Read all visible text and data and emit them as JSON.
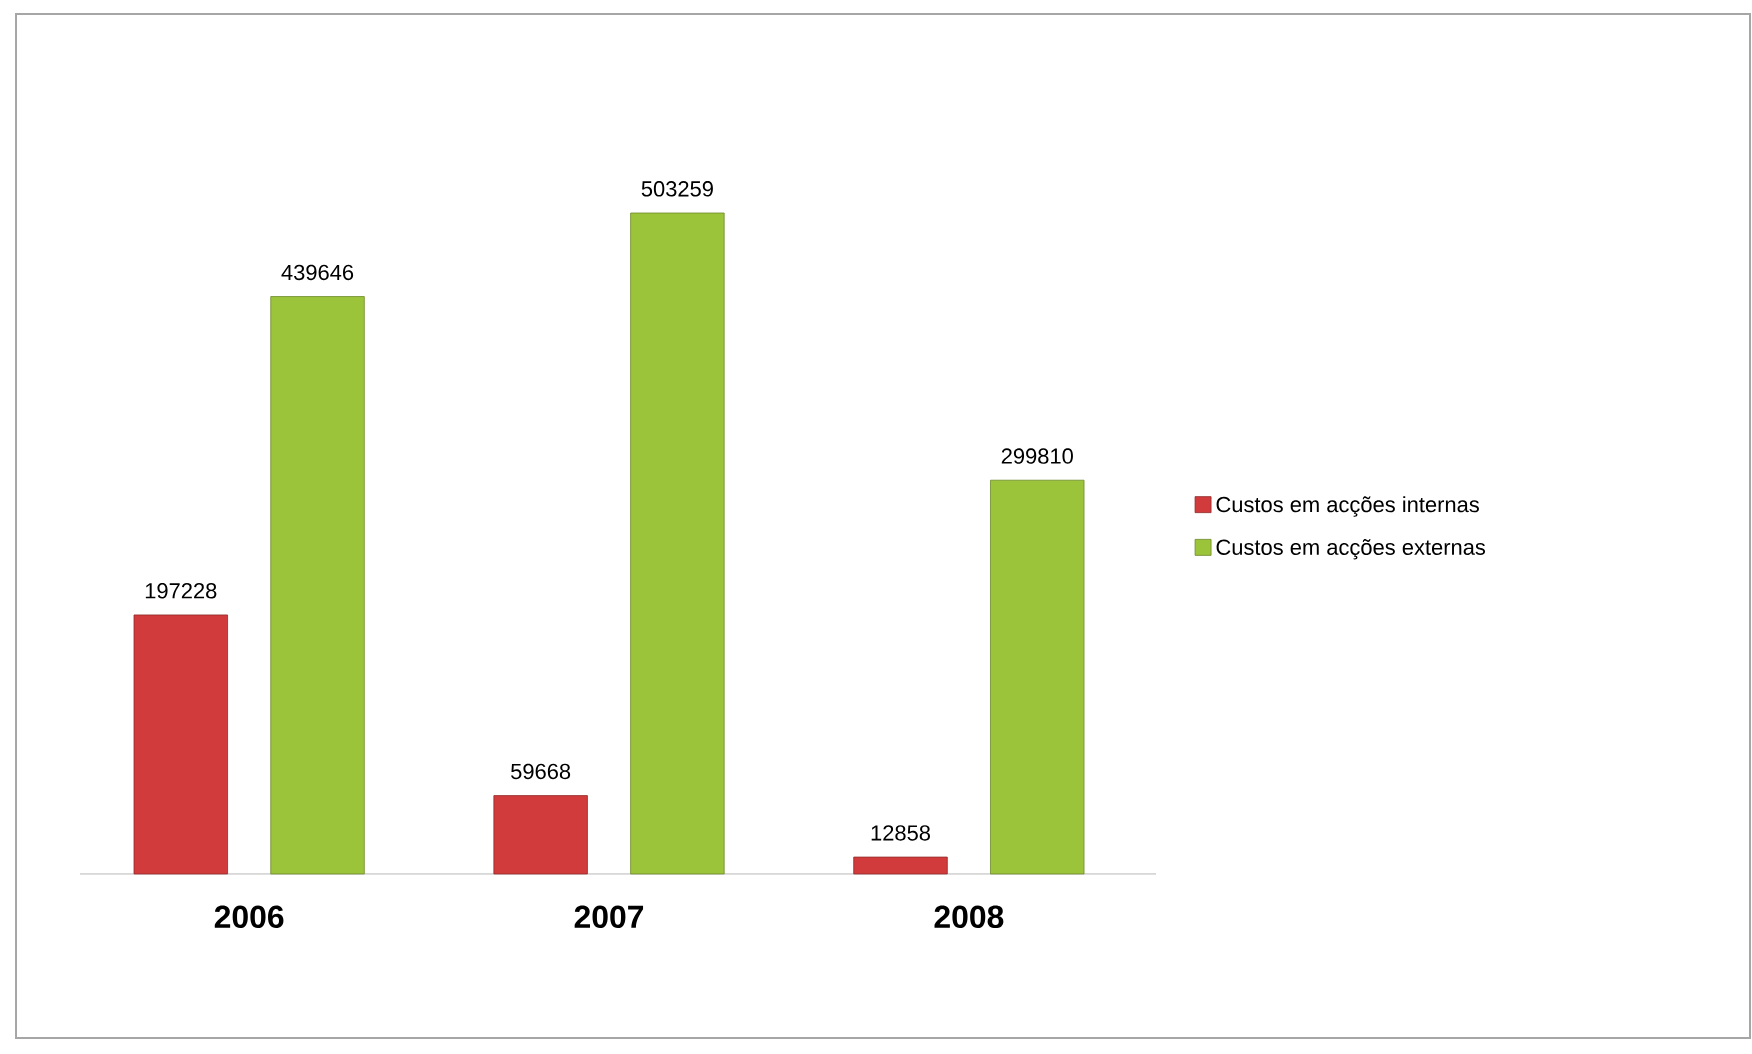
{
  "chart_data": {
    "type": "bar",
    "categories": [
      "2006",
      "2007",
      "2008"
    ],
    "series": [
      {
        "name": "Custos em acções internas",
        "color": "#d13b3b",
        "values": [
          197228,
          59668,
          12858
        ]
      },
      {
        "name": "Custos em acções externas",
        "color": "#9cc43a",
        "values": [
          439646,
          503259,
          299810
        ]
      }
    ],
    "data_labels": true,
    "legend": "right"
  }
}
